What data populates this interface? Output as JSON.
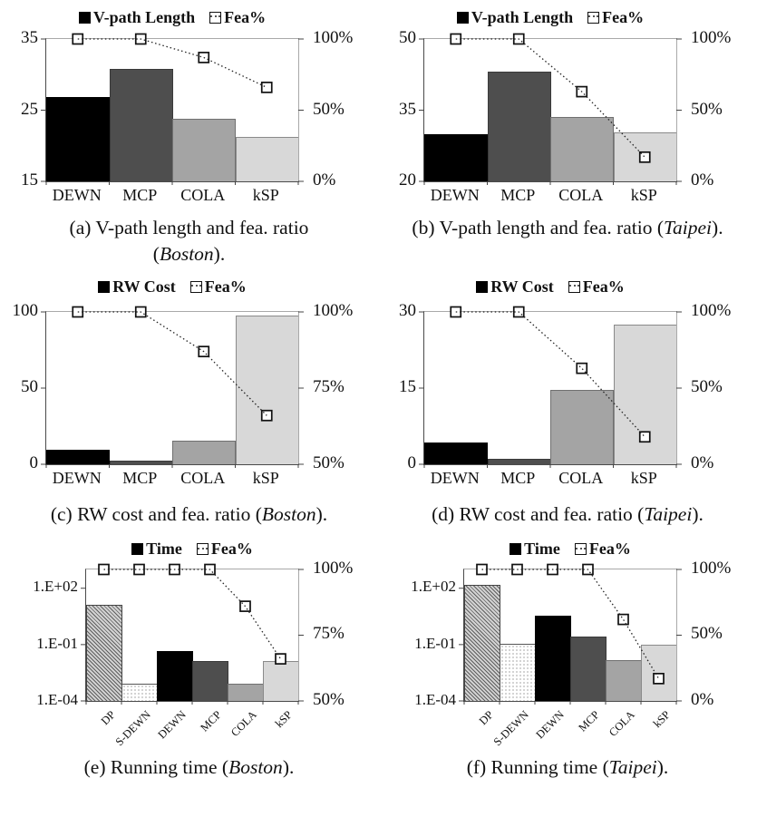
{
  "colors": {
    "background": "#ffffff",
    "bar_black": "#000000",
    "bar_dark_gray": "#4e4e4e",
    "bar_mid_gray": "#a4a4a4",
    "bar_light_gray": "#d8d8d8",
    "plot_border": "#a9a9a9",
    "axis_line": "#4a4a4a",
    "fea_line": "#222222",
    "marker_fill": "#ffffff",
    "marker_stroke": "#111111"
  },
  "chart_data": [
    {
      "id": "a",
      "type": "bar+line",
      "legend": {
        "bar_label": "V-path Length",
        "line_label": "Fea%"
      },
      "categories": [
        "DEWN",
        "MCP",
        "COLA",
        "kSP"
      ],
      "bar_series": {
        "name": "V-path Length",
        "values": [
          26.9,
          30.8,
          23.8,
          21.2
        ]
      },
      "line_series": {
        "name": "Fea%",
        "values": [
          100,
          100,
          87,
          66
        ],
        "unit": "%"
      },
      "bar_styles": [
        "black",
        "dark",
        "mid",
        "light"
      ],
      "left_axis": {
        "scale": "linear",
        "min": 15,
        "max": 35,
        "ticks": [
          {
            "v": 35,
            "label": "35"
          },
          {
            "v": 25,
            "label": "25"
          },
          {
            "v": 15,
            "label": "15"
          }
        ]
      },
      "right_axis": {
        "min": 0,
        "max": 100,
        "ticks": [
          {
            "v": 100,
            "label": "100%"
          },
          {
            "v": 50,
            "label": "50%"
          },
          {
            "v": 0,
            "label": "0%"
          }
        ]
      },
      "caption": {
        "pre": "(a) V-path length and fea. ratio (",
        "city": "Boston",
        "post": ")."
      }
    },
    {
      "id": "b",
      "type": "bar+line",
      "legend": {
        "bar_label": "V-path Length",
        "line_label": "Fea%"
      },
      "categories": [
        "DEWN",
        "MCP",
        "COLA",
        "kSP"
      ],
      "bar_series": {
        "name": "V-path Length",
        "values": [
          30,
          43.2,
          33.5,
          30.3
        ]
      },
      "line_series": {
        "name": "Fea%",
        "values": [
          100,
          100,
          63,
          17
        ],
        "unit": "%"
      },
      "bar_styles": [
        "black",
        "dark",
        "mid",
        "light"
      ],
      "left_axis": {
        "scale": "linear",
        "min": 20,
        "max": 50,
        "ticks": [
          {
            "v": 50,
            "label": "50"
          },
          {
            "v": 35,
            "label": "35"
          },
          {
            "v": 20,
            "label": "20"
          }
        ]
      },
      "right_axis": {
        "min": 0,
        "max": 100,
        "ticks": [
          {
            "v": 100,
            "label": "100%"
          },
          {
            "v": 50,
            "label": "50%"
          },
          {
            "v": 0,
            "label": "0%"
          }
        ]
      },
      "caption": {
        "pre": "(b) V-path length and fea. ratio (",
        "city": "Taipei",
        "post": ")."
      }
    },
    {
      "id": "c",
      "type": "bar+line",
      "legend": {
        "bar_label": "RW Cost",
        "line_label": "Fea%"
      },
      "categories": [
        "DEWN",
        "MCP",
        "COLA",
        "kSP"
      ],
      "bar_series": {
        "name": "RW Cost",
        "values": [
          10,
          2.5,
          15.5,
          98
        ]
      },
      "line_series": {
        "name": "Fea%",
        "values": [
          100,
          100,
          87,
          66
        ],
        "unit": "%"
      },
      "bar_styles": [
        "black",
        "dark",
        "mid",
        "light"
      ],
      "left_axis": {
        "scale": "linear",
        "min": 0,
        "max": 100,
        "ticks": [
          {
            "v": 100,
            "label": "100"
          },
          {
            "v": 50,
            "label": "50"
          },
          {
            "v": 0,
            "label": "0"
          }
        ]
      },
      "right_axis": {
        "min": 50,
        "max": 100,
        "ticks": [
          {
            "v": 100,
            "label": "100%"
          },
          {
            "v": 75,
            "label": "75%"
          },
          {
            "v": 50,
            "label": "50%"
          }
        ]
      },
      "caption": {
        "pre": "(c) RW cost and fea. ratio (",
        "city": "Boston",
        "post": ")."
      }
    },
    {
      "id": "d",
      "type": "bar+line",
      "legend": {
        "bar_label": "RW Cost",
        "line_label": "Fea%"
      },
      "categories": [
        "DEWN",
        "MCP",
        "COLA",
        "kSP"
      ],
      "bar_series": {
        "name": "RW Cost",
        "values": [
          4.3,
          1.1,
          14.8,
          27.6
        ]
      },
      "line_series": {
        "name": "Fea%",
        "values": [
          100,
          100,
          63,
          18
        ],
        "unit": "%"
      },
      "bar_styles": [
        "black",
        "dark",
        "mid",
        "light"
      ],
      "left_axis": {
        "scale": "linear",
        "min": 0,
        "max": 30,
        "ticks": [
          {
            "v": 30,
            "label": "30"
          },
          {
            "v": 15,
            "label": "15"
          },
          {
            "v": 0,
            "label": "0"
          }
        ]
      },
      "right_axis": {
        "min": 0,
        "max": 100,
        "ticks": [
          {
            "v": 100,
            "label": "100%"
          },
          {
            "v": 50,
            "label": "50%"
          },
          {
            "v": 0,
            "label": "0%"
          }
        ]
      },
      "caption": {
        "pre": "(d) RW cost and fea. ratio (",
        "city": "Taipei",
        "post": ")."
      }
    },
    {
      "id": "e",
      "type": "bar+line",
      "legend": {
        "bar_label": "Time",
        "line_label": "Fea%"
      },
      "categories": [
        "DP",
        "S-DEWN",
        "DEWN",
        "MCP",
        "COLA",
        "kSP"
      ],
      "bar_series": {
        "name": "Time (s)",
        "values": [
          12,
          0.0008,
          0.045,
          0.013,
          0.0008,
          0.013
        ]
      },
      "line_series": {
        "name": "Fea%",
        "values": [
          100,
          100,
          100,
          100,
          86,
          66
        ],
        "unit": "%"
      },
      "bar_styles": [
        "hatch",
        "dots",
        "black",
        "dark",
        "mid",
        "light"
      ],
      "left_axis": {
        "scale": "log",
        "min_exp": -4,
        "max_exp": 3,
        "ticks": [
          {
            "v": 100,
            "label": "1.E+02"
          },
          {
            "v": 0.1,
            "label": "1.E-01"
          },
          {
            "v": 0.0001,
            "label": "1.E-04"
          }
        ]
      },
      "right_axis": {
        "min": 50,
        "max": 100,
        "ticks": [
          {
            "v": 100,
            "label": "100%"
          },
          {
            "v": 75,
            "label": "75%"
          },
          {
            "v": 50,
            "label": "50%"
          }
        ]
      },
      "caption": {
        "pre": "(e) Running time (",
        "city": "Boston",
        "post": ")."
      }
    },
    {
      "id": "f",
      "type": "bar+line",
      "legend": {
        "bar_label": "Time",
        "line_label": "Fea%"
      },
      "categories": [
        "DP",
        "S-DEWN",
        "DEWN",
        "MCP",
        "COLA",
        "kSP"
      ],
      "bar_series": {
        "name": "Time (s)",
        "values": [
          140,
          0.11,
          3.2,
          0.26,
          0.015,
          0.1
        ]
      },
      "line_series": {
        "name": "Fea%",
        "values": [
          100,
          100,
          100,
          100,
          62,
          17
        ],
        "unit": "%"
      },
      "bar_styles": [
        "hatch",
        "dots",
        "black",
        "dark",
        "mid",
        "light"
      ],
      "left_axis": {
        "scale": "log",
        "min_exp": -4,
        "max_exp": 3,
        "ticks": [
          {
            "v": 100,
            "label": "1.E+02"
          },
          {
            "v": 0.1,
            "label": "1.E-01"
          },
          {
            "v": 0.0001,
            "label": "1.E-04"
          }
        ]
      },
      "right_axis": {
        "min": 0,
        "max": 100,
        "ticks": [
          {
            "v": 100,
            "label": "100%"
          },
          {
            "v": 50,
            "label": "50%"
          },
          {
            "v": 0,
            "label": "0%"
          }
        ]
      },
      "caption": {
        "pre": "(f) Running time (",
        "city": "Taipei",
        "post": ")."
      }
    }
  ]
}
